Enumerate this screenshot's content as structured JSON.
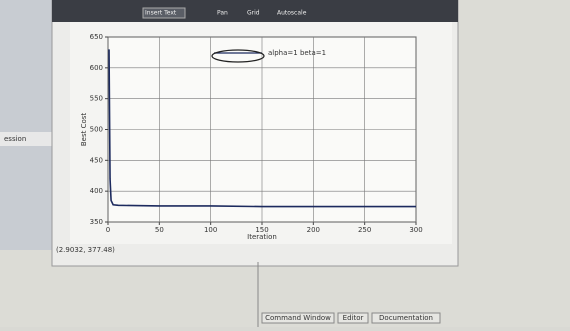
{
  "toolbar": {
    "items": [
      "Insert Text",
      "Pan",
      "Grid",
      "Autoscale"
    ]
  },
  "sidebar": {
    "label": "ession"
  },
  "chart_data": {
    "type": "line",
    "xlabel": "Iteration",
    "ylabel": "Best Cost",
    "x": [
      1,
      2,
      3,
      5,
      10,
      50,
      100,
      150,
      200,
      250,
      300
    ],
    "series": [
      {
        "name": "alpha=1 beta=1",
        "color": "#1c2a5e",
        "values": [
          630,
          420,
          385,
          378,
          377,
          376,
          376,
          375,
          375,
          375,
          375
        ]
      }
    ],
    "xlim": [
      0,
      300
    ],
    "xticks": [
      0,
      50,
      100,
      150,
      200,
      250,
      300
    ],
    "ylim": [
      350,
      650
    ],
    "yticks": [
      350,
      400,
      450,
      500,
      550,
      600,
      650
    ],
    "grid": true
  },
  "status": {
    "coords": "(2.9032, 377.48)"
  },
  "tabs": [
    "Command Window",
    "Editor",
    "Documentation"
  ]
}
